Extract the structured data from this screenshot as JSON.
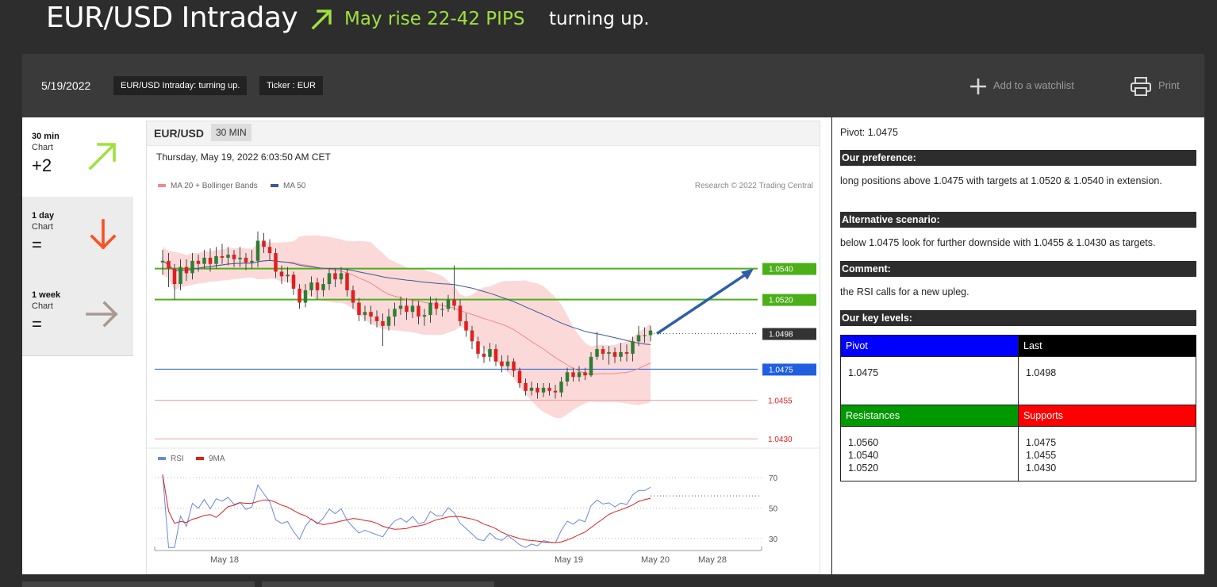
{
  "header": {
    "title": "EUR/USD Intraday",
    "rise_text": "May rise 22-42 PIPS",
    "direction_text": "turning up."
  },
  "toolbar": {
    "date": "5/19/2022",
    "chip_title": "EUR/USD Intraday: turning up.",
    "chip_ticker": "Ticker : EUR",
    "watchlist_label": "Add to a watchlist",
    "print_label": "Print"
  },
  "timeframes": [
    {
      "label": "30 min",
      "sub": "Chart",
      "score": "+2",
      "direction": "up",
      "icon": "arrow-up-right-icon",
      "color": "#9ee13e"
    },
    {
      "label": "1 day",
      "sub": "Chart",
      "score": "=",
      "direction": "down",
      "icon": "arrow-down-icon",
      "color": "#ff4e1f"
    },
    {
      "label": "1 week",
      "sub": "Chart",
      "score": "=",
      "direction": "right",
      "icon": "arrow-right-icon",
      "color": "#a89a90"
    }
  ],
  "chart_header": {
    "symbol": "EUR/USD",
    "timeframe": "30 MIN",
    "timestamp": "Thursday, May 19, 2022 6:03:50 AM CET",
    "legend_ma20": "MA 20 + Bollinger Bands",
    "legend_ma50": "MA 50",
    "copyright": "Research © 2022 Trading Central",
    "rsi_legend": "RSI",
    "rsi_ma_legend": "9MA"
  },
  "chart_data": {
    "type": "candlestick",
    "price_ylim": [
      1.0425,
      1.059
    ],
    "levels": [
      {
        "value": 1.054,
        "label": "1.0540",
        "kind": "resistance",
        "color": "#4caf1a"
      },
      {
        "value": 1.052,
        "label": "1.0520",
        "kind": "resistance",
        "color": "#4caf1a"
      },
      {
        "value": 1.0498,
        "label": "1.0498",
        "kind": "last",
        "color": "#333333"
      },
      {
        "value": 1.0475,
        "label": "1.0475",
        "kind": "pivot",
        "color": "#1f5fe0"
      },
      {
        "value": 1.0455,
        "label": "1.0455",
        "kind": "support",
        "color": "#e01f1f"
      },
      {
        "value": 1.043,
        "label": "1.0430",
        "kind": "support",
        "color": "#e01f1f"
      }
    ],
    "target_arrow": {
      "from": 1.0498,
      "to": 1.054
    },
    "x_tick_labels": [
      "May 18",
      "May 19",
      "May 20",
      "May 28"
    ],
    "rsi_ticks": [
      "70",
      "50",
      "30"
    ],
    "rsi_ylim": [
      20,
      80
    ],
    "candles": [
      [
        1.0544,
        1.0545,
        1.0552,
        1.0536
      ],
      [
        1.0545,
        1.054,
        1.055,
        1.0528
      ],
      [
        1.054,
        1.053,
        1.0543,
        1.052
      ],
      [
        1.053,
        1.0541,
        1.0546,
        1.0526
      ],
      [
        1.0541,
        1.0537,
        1.0546,
        1.0532
      ],
      [
        1.0537,
        1.0545,
        1.055,
        1.0533
      ],
      [
        1.0545,
        1.0543,
        1.0549,
        1.0538
      ],
      [
        1.0543,
        1.0547,
        1.0552,
        1.054
      ],
      [
        1.0547,
        1.0543,
        1.0553,
        1.0538
      ],
      [
        1.0543,
        1.0548,
        1.0554,
        1.054
      ],
      [
        1.0548,
        1.0547,
        1.0556,
        1.0543
      ],
      [
        1.0547,
        1.0549,
        1.0554,
        1.0542
      ],
      [
        1.0549,
        1.0546,
        1.0552,
        1.0541
      ],
      [
        1.0546,
        1.0547,
        1.0554,
        1.0541
      ],
      [
        1.0547,
        1.0544,
        1.055,
        1.0539
      ],
      [
        1.0544,
        1.0545,
        1.0552,
        1.054
      ],
      [
        1.0545,
        1.0558,
        1.0564,
        1.0541
      ],
      [
        1.0558,
        1.0554,
        1.0563,
        1.055
      ],
      [
        1.0554,
        1.055,
        1.0559,
        1.0545
      ],
      [
        1.055,
        1.0538,
        1.0553,
        1.0534
      ],
      [
        1.0538,
        1.0535,
        1.0542,
        1.053
      ],
      [
        1.0535,
        1.0536,
        1.0541,
        1.0531
      ],
      [
        1.0536,
        1.0527,
        1.0538,
        1.0523
      ],
      [
        1.0527,
        1.0518,
        1.053,
        1.0514
      ],
      [
        1.0518,
        1.0526,
        1.053,
        1.0515
      ],
      [
        1.0526,
        1.0531,
        1.0535,
        1.0522
      ],
      [
        1.0531,
        1.0526,
        1.0534,
        1.052
      ],
      [
        1.0526,
        1.053,
        1.0534,
        1.0522
      ],
      [
        1.053,
        1.0537,
        1.054,
        1.0526
      ],
      [
        1.0537,
        1.0533,
        1.054,
        1.0528
      ],
      [
        1.0533,
        1.0537,
        1.0541,
        1.053
      ],
      [
        1.0537,
        1.0526,
        1.054,
        1.0522
      ],
      [
        1.0526,
        1.0518,
        1.0529,
        1.0514
      ],
      [
        1.0518,
        1.051,
        1.0521,
        1.0506
      ],
      [
        1.051,
        1.0512,
        1.0516,
        1.0506
      ],
      [
        1.0512,
        1.0509,
        1.0516,
        1.0504
      ],
      [
        1.0509,
        1.0506,
        1.0513,
        1.0502
      ],
      [
        1.0506,
        1.0503,
        1.0511,
        1.049
      ],
      [
        1.0503,
        1.0509,
        1.0514,
        1.05
      ],
      [
        1.0509,
        1.0514,
        1.0518,
        1.0503
      ],
      [
        1.0514,
        1.0516,
        1.0522,
        1.051
      ],
      [
        1.0516,
        1.0512,
        1.0521,
        1.0507
      ],
      [
        1.0512,
        1.0516,
        1.052,
        1.0508
      ],
      [
        1.0516,
        1.0509,
        1.0519,
        1.0504
      ],
      [
        1.0509,
        1.051,
        1.0514,
        1.0503
      ],
      [
        1.051,
        1.0518,
        1.0522,
        1.0505
      ],
      [
        1.0518,
        1.0514,
        1.0521,
        1.051
      ],
      [
        1.0514,
        1.0514,
        1.0518,
        1.0509
      ],
      [
        1.0514,
        1.052,
        1.0523,
        1.0512
      ],
      [
        1.052,
        1.0516,
        1.0542,
        1.0513
      ],
      [
        1.0516,
        1.0506,
        1.052,
        1.0503
      ],
      [
        1.0506,
        1.05,
        1.0511,
        1.0496
      ],
      [
        1.05,
        1.0493,
        1.0503,
        1.0488
      ],
      [
        1.0493,
        1.0485,
        1.0496,
        1.0482
      ],
      [
        1.0485,
        1.0483,
        1.049,
        1.0479
      ],
      [
        1.0483,
        1.0488,
        1.0492,
        1.048
      ],
      [
        1.0488,
        1.048,
        1.0491,
        1.0477
      ],
      [
        1.048,
        1.0477,
        1.0484,
        1.0473
      ],
      [
        1.0477,
        1.048,
        1.0484,
        1.0474
      ],
      [
        1.048,
        1.0474,
        1.0482,
        1.047
      ],
      [
        1.0474,
        1.0466,
        1.0476,
        1.0463
      ],
      [
        1.0466,
        1.0461,
        1.0469,
        1.0458
      ],
      [
        1.0461,
        1.0463,
        1.0467,
        1.0458
      ],
      [
        1.0463,
        1.046,
        1.0466,
        1.0456
      ],
      [
        1.046,
        1.0463,
        1.0466,
        1.0457
      ],
      [
        1.0463,
        1.0461,
        1.0466,
        1.0458
      ],
      [
        1.0461,
        1.046,
        1.0465,
        1.0456
      ],
      [
        1.046,
        1.0467,
        1.047,
        1.0457
      ],
      [
        1.0467,
        1.0473,
        1.0476,
        1.0464
      ],
      [
        1.0473,
        1.047,
        1.0476,
        1.0467
      ],
      [
        1.047,
        1.0473,
        1.0477,
        1.0467
      ],
      [
        1.0473,
        1.0471,
        1.0476,
        1.0468
      ],
      [
        1.0471,
        1.0483,
        1.0486,
        1.047
      ],
      [
        1.0483,
        1.0488,
        1.0499,
        1.0481
      ],
      [
        1.0488,
        1.0485,
        1.049,
        1.0481
      ],
      [
        1.0485,
        1.0486,
        1.049,
        1.0478
      ],
      [
        1.0486,
        1.0483,
        1.0489,
        1.0479
      ],
      [
        1.0483,
        1.0486,
        1.0492,
        1.048
      ],
      [
        1.0486,
        1.0485,
        1.0491,
        1.048
      ],
      [
        1.0485,
        1.0493,
        1.0496,
        1.048
      ],
      [
        1.0493,
        1.0497,
        1.0503,
        1.049
      ],
      [
        1.0497,
        1.0497,
        1.0502,
        1.0492
      ],
      [
        1.0497,
        1.05,
        1.0503,
        1.0493
      ]
    ]
  },
  "analysis": {
    "pivot": "Pivot: 1.0475",
    "preference_heading": "Our preference:",
    "preference_text": "long positions above 1.0475 with targets at 1.0520 & 1.0540 in extension.",
    "alternative_heading": "Alternative scenario:",
    "alternative_text": "below 1.0475 look for further downside with 1.0455 & 1.0430 as targets.",
    "comment_heading": "Comment:",
    "comment_text": "the RSI calls for a new upleg.",
    "levels_heading": "Our key levels:",
    "table": {
      "pivot_label": "Pivot",
      "last_label": "Last",
      "pivot_value": "1.0475",
      "last_value": "1.0498",
      "resistances_label": "Resistances",
      "supports_label": "Supports",
      "resistances": [
        "1.0560",
        "1.0540",
        "1.0520"
      ],
      "supports": [
        "1.0475",
        "1.0455",
        "1.0430"
      ]
    },
    "colors": {
      "pivot": "#0000ff",
      "last": "#000000",
      "resistances": "#009900",
      "supports": "#ff0000"
    }
  }
}
